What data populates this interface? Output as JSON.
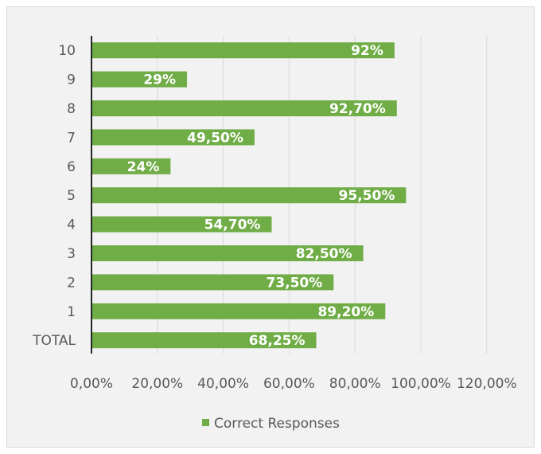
{
  "chart_data": {
    "type": "bar",
    "orientation": "horizontal",
    "categories": [
      "10",
      "9",
      "8",
      "7",
      "6",
      "5",
      "4",
      "3",
      "2",
      "1",
      "TOTAL"
    ],
    "series": [
      {
        "name": "Correct Responses",
        "color": "#70ad47",
        "values": [
          92,
          29,
          92.7,
          49.5,
          24,
          95.5,
          54.7,
          82.5,
          73.5,
          89.2,
          68.25
        ],
        "data_labels": [
          "92%",
          "29%",
          "92,70%",
          "49,50%",
          "24%",
          "95,50%",
          "54,70%",
          "82,50%",
          "73,50%",
          "89,20%",
          "68,25%"
        ]
      }
    ],
    "x_ticks": [
      "0,00%",
      "20,00%",
      "40,00%",
      "60,00%",
      "80,00%",
      "100,00%",
      "120,00%"
    ],
    "xlim": [
      0,
      120
    ],
    "grid": "vertical",
    "legend": "bottom",
    "title": "",
    "xlabel": "",
    "ylabel": ""
  },
  "legend": {
    "label": "Correct Responses"
  }
}
